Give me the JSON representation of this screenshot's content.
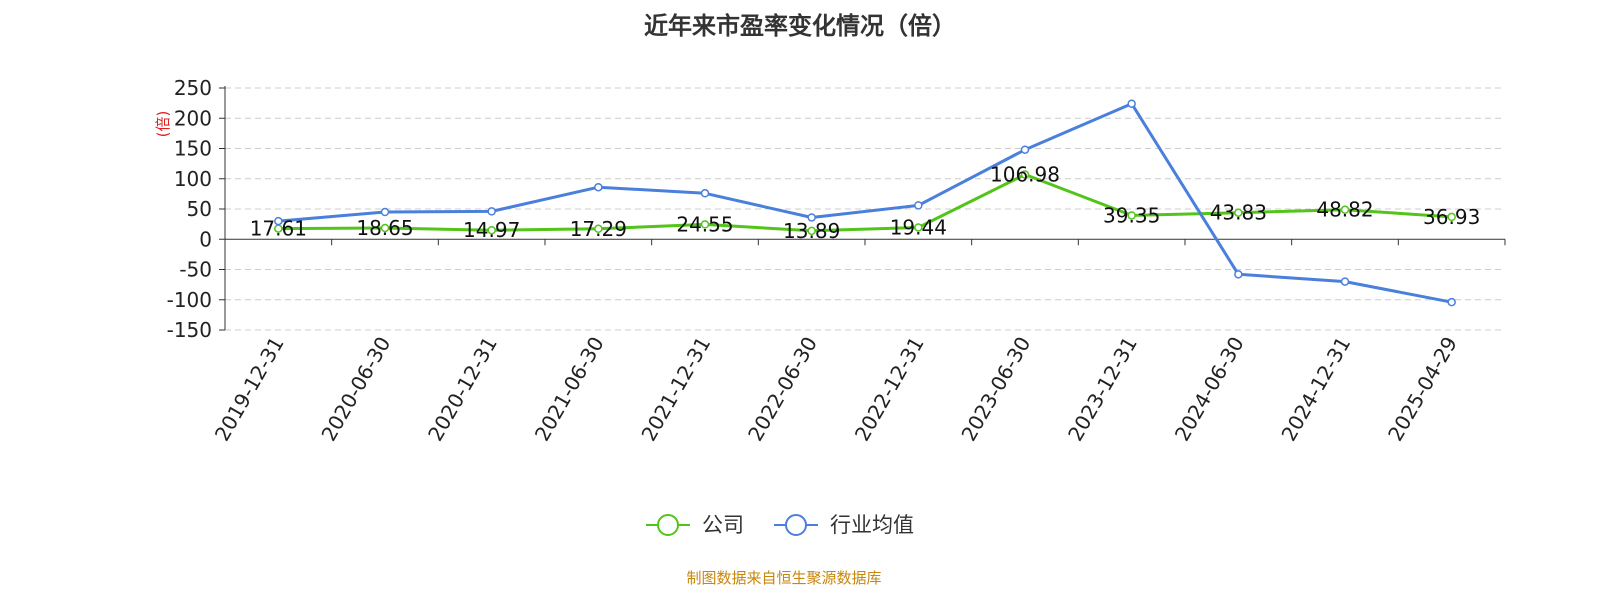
{
  "chart_data": {
    "type": "line",
    "title": "近年来市盈率变化情况（倍）",
    "ylabel": "(倍)",
    "xlabel": "",
    "categories": [
      "2019-12-31",
      "2020-06-30",
      "2020-12-31",
      "2021-06-30",
      "2021-12-31",
      "2022-06-30",
      "2022-12-31",
      "2023-06-30",
      "2023-12-31",
      "2024-06-30",
      "2024-12-31",
      "2025-04-29"
    ],
    "y_ticks": [
      250,
      200,
      150,
      100,
      50,
      0,
      -50,
      -100,
      -150
    ],
    "ylim": [
      -150,
      250
    ],
    "grid": true,
    "legend_position": "bottom",
    "series": [
      {
        "name": "公司",
        "color": "#52c41a",
        "values": [
          17.61,
          18.65,
          14.97,
          17.29,
          24.55,
          13.89,
          19.44,
          106.98,
          39.35,
          43.83,
          48.82,
          36.93
        ],
        "labels": [
          "17.61",
          "18.65",
          "14.97",
          "17.29",
          "24.55",
          "13.89",
          "19.44",
          "106.98",
          "39.35",
          "43.83",
          "48.82",
          "36.93"
        ]
      },
      {
        "name": "行业均值",
        "color": "#4a7fdc",
        "values": [
          30,
          45,
          46,
          86,
          76,
          36,
          56,
          148,
          224,
          -58,
          -70,
          -104
        ]
      }
    ]
  },
  "source": "制图数据来自恒生聚源数据库"
}
